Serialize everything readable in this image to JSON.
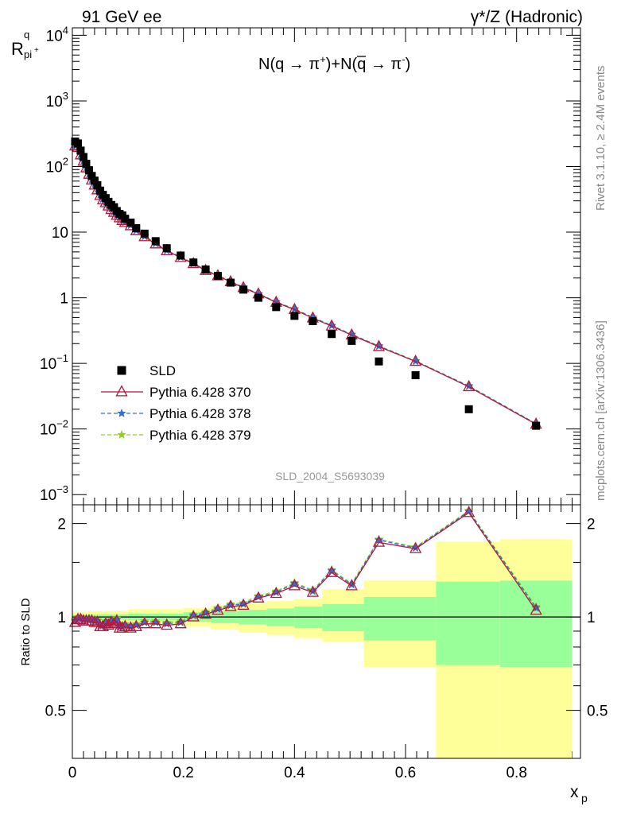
{
  "header": {
    "left": "91 GeV ee",
    "right": "γ*/Z (Hadronic)"
  },
  "side_labels": {
    "rivet": "Rivet 3.1.10, ≥ 2.4M events",
    "mcplots": "mcplots.cern.ch [arXiv:1306.3436]"
  },
  "analysis_id": "SLD_2004_S5693039",
  "annotation": {
    "a": "N(q → π",
    "a_sup": "+",
    "b": ")+N(",
    "qbar": "q",
    "c": " → π",
    "c_sup": "-",
    "d": ")"
  },
  "colors": {
    "data": "#000000",
    "pythia370": "#b5163c",
    "pythia378": "#2f6fd0",
    "pythia379": "#8ed01c",
    "band_inner": "#99ff99",
    "band_outer": "#ffff99"
  },
  "chart_data": [
    {
      "type": "scatter",
      "panel": "main",
      "ylabel": "R",
      "ylabel_sup": "q",
      "ylabel_sub": "pi",
      "ylabel_subsup": "+",
      "yscale": "log",
      "ylim": [
        0.0007,
        13000
      ],
      "xlim": [
        0,
        0.915
      ],
      "y_ticks": [
        {
          "value": 10000,
          "label": "10",
          "exp": "4"
        },
        {
          "value": 1000,
          "label": "10",
          "exp": "3"
        },
        {
          "value": 100,
          "label": "10",
          "exp": "2"
        },
        {
          "value": 10,
          "label": "10",
          "exp": ""
        },
        {
          "value": 1,
          "label": "1",
          "exp": ""
        },
        {
          "value": 0.1,
          "label": "10",
          "exp": "−1"
        },
        {
          "value": 0.01,
          "label": "10",
          "exp": "−2"
        },
        {
          "value": 0.001,
          "label": "10",
          "exp": "−3"
        }
      ],
      "legend": [
        {
          "label": "SLD",
          "key": "data"
        },
        {
          "label": "Pythia 6.428 370",
          "key": "p370"
        },
        {
          "label": "Pythia 6.428 378",
          "key": "p378"
        },
        {
          "label": "Pythia 6.428 379",
          "key": "p379"
        }
      ],
      "x": [
        0.005,
        0.01,
        0.015,
        0.02,
        0.025,
        0.03,
        0.035,
        0.04,
        0.045,
        0.05,
        0.055,
        0.06,
        0.065,
        0.07,
        0.075,
        0.08,
        0.085,
        0.09,
        0.095,
        0.105,
        0.115,
        0.13,
        0.15,
        0.17,
        0.195,
        0.218,
        0.24,
        0.262,
        0.285,
        0.308,
        0.335,
        0.367,
        0.4,
        0.433,
        0.467,
        0.503,
        0.552,
        0.618,
        0.714,
        0.835
      ],
      "series": [
        {
          "name": "SLD",
          "key": "data",
          "values": [
            240,
            225,
            175,
            140,
            110,
            88,
            72,
            61,
            52,
            43,
            37,
            33,
            29,
            26,
            24,
            21,
            19,
            18,
            16,
            14,
            11.5,
            9.5,
            7.3,
            5.7,
            4.4,
            3.45,
            2.7,
            2.15,
            1.7,
            1.33,
            1.0,
            0.72,
            0.53,
            0.44,
            0.28,
            0.22,
            0.107,
            0.066,
            0.02,
            0.0112
          ]
        },
        {
          "name": "Pythia 6.428 370",
          "key": "p370",
          "values": [
            205,
            195,
            150,
            120,
            95,
            76,
            62,
            52,
            44,
            36,
            31,
            28,
            25,
            22,
            20,
            18,
            16.5,
            15,
            14,
            12.5,
            10.5,
            8.5,
            6.6,
            5.2,
            4.1,
            3.3,
            2.6,
            2.15,
            1.75,
            1.42,
            1.14,
            0.85,
            0.66,
            0.49,
            0.37,
            0.27,
            0.18,
            0.107,
            0.044,
            0.0118
          ]
        },
        {
          "name": "Pythia 6.428 378",
          "key": "p378",
          "values": [
            210,
            198,
            152,
            122,
            96,
            77,
            63,
            53,
            45,
            37,
            32,
            28.5,
            25.5,
            22.5,
            20.5,
            18.2,
            16.7,
            15.2,
            14.2,
            12.7,
            10.6,
            8.6,
            6.7,
            5.25,
            4.15,
            3.33,
            2.63,
            2.17,
            1.77,
            1.44,
            1.15,
            0.86,
            0.67,
            0.5,
            0.375,
            0.275,
            0.183,
            0.108,
            0.045,
            0.012
          ]
        },
        {
          "name": "Pythia 6.428 379",
          "key": "p379",
          "values": [
            212,
            200,
            153,
            123,
            97,
            78,
            64,
            54,
            45.5,
            37.5,
            32.5,
            29,
            26,
            23,
            21,
            18.5,
            17,
            15.4,
            14.4,
            12.8,
            10.7,
            8.7,
            6.75,
            5.3,
            4.18,
            3.36,
            2.66,
            2.19,
            1.79,
            1.45,
            1.16,
            0.87,
            0.675,
            0.505,
            0.378,
            0.278,
            0.185,
            0.109,
            0.0455,
            0.0121
          ]
        }
      ]
    },
    {
      "type": "line",
      "panel": "ratio",
      "ylabel": "Ratio to SLD",
      "xlabel": "x",
      "xlabel_sub": "p",
      "ylim": [
        0.35,
        2.3
      ],
      "xlim": [
        0,
        0.915
      ],
      "y_ticks": [
        {
          "value": 0.5,
          "label": "0.5"
        },
        {
          "value": 1,
          "label": "1"
        },
        {
          "value": 2,
          "label": "2"
        }
      ],
      "x_ticks": [
        {
          "value": 0,
          "label": "0"
        },
        {
          "value": 0.2,
          "label": "0.2"
        },
        {
          "value": 0.4,
          "label": "0.4"
        },
        {
          "value": 0.6,
          "label": "0.6"
        },
        {
          "value": 0.8,
          "label": "0.8"
        }
      ],
      "bands": [
        {
          "x0": 0.0,
          "x1": 0.03,
          "inner": [
            0.985,
            1.015
          ],
          "outer": [
            0.965,
            1.035
          ]
        },
        {
          "x0": 0.03,
          "x1": 0.1,
          "inner": [
            0.98,
            1.02
          ],
          "outer": [
            0.955,
            1.045
          ]
        },
        {
          "x0": 0.1,
          "x1": 0.2,
          "inner": [
            0.975,
            1.025
          ],
          "outer": [
            0.94,
            1.06
          ]
        },
        {
          "x0": 0.2,
          "x1": 0.25,
          "inner": [
            0.965,
            1.035
          ],
          "outer": [
            0.93,
            1.07
          ]
        },
        {
          "x0": 0.25,
          "x1": 0.3,
          "inner": [
            0.955,
            1.045
          ],
          "outer": [
            0.91,
            1.09
          ]
        },
        {
          "x0": 0.3,
          "x1": 0.35,
          "inner": [
            0.945,
            1.055
          ],
          "outer": [
            0.89,
            1.11
          ]
        },
        {
          "x0": 0.35,
          "x1": 0.4,
          "inner": [
            0.935,
            1.065
          ],
          "outer": [
            0.875,
            1.125
          ]
        },
        {
          "x0": 0.4,
          "x1": 0.45,
          "inner": [
            0.92,
            1.08
          ],
          "outer": [
            0.855,
            1.145
          ]
        },
        {
          "x0": 0.45,
          "x1": 0.525,
          "inner": [
            0.9,
            1.1
          ],
          "outer": [
            0.83,
            1.23
          ]
        },
        {
          "x0": 0.525,
          "x1": 0.655,
          "inner": [
            0.84,
            1.16
          ],
          "outer": [
            0.69,
            1.31
          ]
        },
        {
          "x0": 0.655,
          "x1": 0.77,
          "inner": [
            0.7,
            1.3
          ],
          "outer": [
            0.35,
            1.75
          ]
        },
        {
          "x0": 0.77,
          "x1": 0.9,
          "inner": [
            0.69,
            1.31
          ],
          "outer": [
            0.35,
            1.78
          ]
        }
      ],
      "x": [
        0.005,
        0.01,
        0.015,
        0.02,
        0.025,
        0.03,
        0.035,
        0.04,
        0.045,
        0.05,
        0.055,
        0.06,
        0.065,
        0.07,
        0.075,
        0.08,
        0.085,
        0.09,
        0.095,
        0.105,
        0.115,
        0.13,
        0.15,
        0.17,
        0.195,
        0.218,
        0.24,
        0.262,
        0.285,
        0.308,
        0.335,
        0.367,
        0.4,
        0.433,
        0.467,
        0.503,
        0.552,
        0.618,
        0.714,
        0.835
      ],
      "series": [
        {
          "name": "Pythia 6.428 370",
          "key": "p370",
          "values": [
            0.96,
            0.98,
            0.98,
            0.97,
            0.97,
            0.97,
            0.97,
            0.96,
            0.96,
            0.93,
            0.93,
            0.95,
            0.94,
            0.96,
            0.95,
            0.97,
            0.92,
            0.92,
            0.93,
            0.92,
            0.93,
            0.95,
            0.95,
            0.94,
            0.95,
            1.0,
            1.02,
            1.05,
            1.08,
            1.09,
            1.15,
            1.19,
            1.26,
            1.2,
            1.39,
            1.26,
            1.74,
            1.66,
            2.17,
            1.05
          ]
        },
        {
          "name": "Pythia 6.428 378",
          "key": "p378",
          "values": [
            0.97,
            0.99,
            0.99,
            0.98,
            0.98,
            0.98,
            0.98,
            0.97,
            0.97,
            0.94,
            0.94,
            0.96,
            0.95,
            0.97,
            0.96,
            0.98,
            0.93,
            0.93,
            0.94,
            0.93,
            0.94,
            0.96,
            0.96,
            0.95,
            0.96,
            1.01,
            1.03,
            1.06,
            1.09,
            1.1,
            1.16,
            1.2,
            1.28,
            1.21,
            1.41,
            1.27,
            1.77,
            1.67,
            2.19,
            1.07
          ]
        },
        {
          "name": "Pythia 6.428 379",
          "key": "p379",
          "values": [
            0.98,
            1.0,
            1.0,
            0.99,
            0.99,
            0.99,
            0.99,
            0.98,
            0.98,
            0.95,
            0.95,
            0.97,
            0.96,
            0.98,
            0.97,
            0.99,
            0.94,
            0.94,
            0.95,
            0.94,
            0.95,
            0.97,
            0.97,
            0.96,
            0.97,
            1.02,
            1.04,
            1.07,
            1.1,
            1.11,
            1.17,
            1.21,
            1.29,
            1.22,
            1.42,
            1.28,
            1.78,
            1.68,
            2.2,
            1.08
          ]
        }
      ]
    }
  ]
}
